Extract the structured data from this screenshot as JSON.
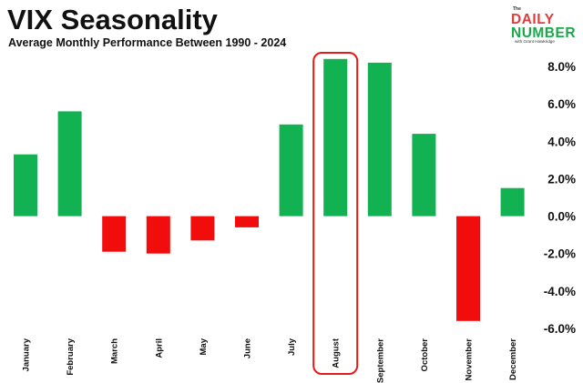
{
  "header": {
    "title": "VIX Seasonality",
    "subtitle": "Average Monthly Performance Between 1990 - 2024"
  },
  "logo": {
    "small_text": "The",
    "line1": "DAILY",
    "line2": "NUMBER",
    "tagline": "with Grant Hawkridge",
    "colors": {
      "red": "#e23b3b",
      "green": "#1aa84b"
    }
  },
  "chart_data": {
    "type": "bar",
    "categories": [
      "January",
      "February",
      "March",
      "April",
      "May",
      "June",
      "July",
      "August",
      "September",
      "October",
      "November",
      "December"
    ],
    "values": [
      3.3,
      5.6,
      -1.9,
      -2.0,
      -1.3,
      -0.6,
      4.9,
      8.4,
      8.2,
      4.4,
      -5.6,
      1.5
    ],
    "ylim": [
      -6.0,
      8.0
    ],
    "yticks": [
      8.0,
      6.0,
      4.0,
      2.0,
      0.0,
      -2.0,
      -4.0,
      -6.0
    ],
    "ytick_labels": [
      "8.0%",
      "6.0%",
      "4.0%",
      "2.0%",
      "0.0%",
      "-2.0%",
      "-4.0%",
      "-6.0%"
    ],
    "y_axis_side": "right",
    "grid": false,
    "highlighted_category": "August",
    "colors": {
      "positive": "#12b151",
      "negative": "#f20d0d",
      "highlight_outline": "#e41b1b"
    }
  }
}
